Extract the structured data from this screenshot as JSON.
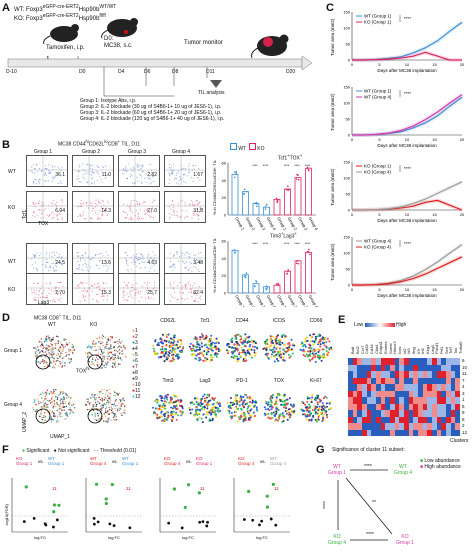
{
  "panels": {
    "A": "A",
    "B": "B",
    "C": "C",
    "D": "D",
    "E": "E",
    "F": "F",
    "G": "G"
  },
  "panelA": {
    "genotype_wt": "WT: Foxp3",
    "genotype_wt_sup": "eGFP-cre-ERT2",
    "genotype_wt_rest": "Hsp90b",
    "genotype_wt_sup2": "WT/WT",
    "genotype_ko": "KO: Foxp3",
    "genotype_ko_sup": "eGFP-cre-ERT2",
    "genotype_ko_rest": "Hsp90b",
    "genotype_ko_sup2": "fl/fl",
    "d0_label": "D0:",
    "d0_detail": "MC38, s.c.",
    "tamoxifen": "Tamoxifen, i.p.",
    "tumor_monitor": "Tumor monitor",
    "timeline": [
      "D-10",
      "D0",
      "D4",
      "D6",
      "D8",
      "D11",
      "D20"
    ],
    "til_analysis": "TIL analysis",
    "groups": [
      "Group 1:  Isotype Abs, i.p.",
      "Group 2:  IL-2 blockade (30 ug of S4B6-1+ 10 ug of JES6-1), i.p.",
      "Group 3:  IL-2 blockade (60 ug of S4B6-1+ 20 ug of JES6-1), i.p.",
      "Group 4:  IL-2 blockade (120 ug of S4B6-1+ 40 ug of JES6-1), i.p."
    ]
  },
  "panelB": {
    "title": "MC38 CD44",
    "title_rest": "CD62L",
    "title_rest2": "CD8",
    "title_end": " TIL, D11",
    "groups": [
      "Group 1",
      "Group 2",
      "Group 3",
      "Group 4"
    ],
    "rows": [
      "WT",
      "KO",
      "WT",
      "KO"
    ],
    "values_top": [
      [
        "36.1",
        "11.0",
        "2.82",
        "1.67"
      ],
      [
        "6.04",
        "14.3",
        "27.0",
        "31.8"
      ]
    ],
    "values_bottom": [
      [
        "24.5",
        "13.5",
        "4.63",
        "3.48"
      ],
      [
        "2.70",
        "15.3",
        "25.7",
        "32.4"
      ]
    ],
    "axis_tcf1": "Tcf1",
    "axis_tox": "TOX",
    "axis_tim3": "Tim3",
    "axis_lag3": "Lag3",
    "legend_wt": "WT",
    "legend_ko": "KO",
    "bar1_title": "Tcf1",
    "bar1_title_rest": "TOX",
    "bar2_title": "Tim3",
    "bar2_title_rest": "Lag3",
    "bar_ylabel": "% in CD44hiCD62LloCD8+ TIL",
    "bar_x": [
      "Group 1",
      "Group 2",
      "Group 3",
      "Group 4",
      "Group 1",
      "Group 2",
      "Group 3",
      "Group 4"
    ],
    "bar1_ticks": [
      "0",
      "20",
      "40",
      "60"
    ],
    "bar2_ticks": [
      "0",
      "20",
      "40",
      "60"
    ],
    "sig": "****"
  },
  "panelC": {
    "ylabel": "Tumor area (mm2)",
    "xlabel": "Days after MC38 implantation",
    "yticks": [
      "0",
      "50",
      "100",
      "150"
    ],
    "xticks": [
      "0",
      "5",
      "10",
      "15",
      "20"
    ],
    "legends": [
      [
        "WT (Group 1)",
        "KO (Group 1)"
      ],
      [
        "WT (Group 1)",
        "WT (Group 4)"
      ],
      [
        "KO (Group 1)",
        "KO (Group 4)"
      ],
      [
        "WT (Group 4)",
        "KO (Group 4)"
      ]
    ],
    "sig": "****"
  },
  "panelD": {
    "title": "MC38 CD8",
    "title_rest": " TIL, D11",
    "wt": "WT",
    "ko": "KO",
    "group1": "Group 1",
    "group4": "Group 4",
    "umap1": "UMAP_1",
    "umap2": "UMAP_2",
    "tox_label": "TOX",
    "markers": [
      "CD62L",
      "Tcf1",
      "CD44",
      "ICOS",
      "CD69",
      "Tim3",
      "Lag3",
      "PD-1",
      "TOX",
      "Ki-67"
    ],
    "cluster_ids": [
      "1",
      "2",
      "3",
      "4",
      "5",
      "6",
      "7",
      "8",
      "9",
      "10",
      "11",
      "12"
    ]
  },
  "panelE": {
    "low": "Low",
    "high": "High",
    "genes": [
      "Batf",
      "Bcl2",
      "Ccr7",
      "Cd28",
      "Cd44",
      "Ctla4",
      "Entpd1",
      "Eomes",
      "Gzmb",
      "Havcr2",
      "Icos",
      "Id2",
      "Id3",
      "Ifng",
      "Il7r",
      "Irf4",
      "Klrg1",
      "Lag3",
      "Pdcd1",
      "Prf1",
      "Sell",
      "Tcf7",
      "Tox",
      "Tnfrsf9"
    ],
    "rows": [
      "6",
      "10",
      "11",
      "7",
      "4",
      "3",
      "1",
      "5",
      "9",
      "8",
      "2",
      "12"
    ],
    "xlabel": "Clusters"
  },
  "panelF": {
    "legend_sig": "Significant",
    "legend_ns": "Not significant",
    "legend_thr": "Threshold (0.01)",
    "comparisons": [
      {
        "a": "KO",
        "a2": "Group 1",
        "b": "WT",
        "b2": "Group 1"
      },
      {
        "a": "WT",
        "a2": "Group 4",
        "b": "WT",
        "b2": "Group 1"
      },
      {
        "a": "KO",
        "a2": "Group 4",
        "b": "KO",
        "b2": "Group 1"
      },
      {
        "a": "KO",
        "a2": "Group 4",
        "b": "WT",
        "b2": "Group 4"
      }
    ],
    "vs": "vs.",
    "xlabel": "log FC",
    "ylabel": "-log10(FDR)",
    "cluster_label": "11"
  },
  "panelG": {
    "title": "Significance of cluster 11 subset:",
    "legend_low": "Low abundance",
    "legend_high": "High abundance",
    "wt1": "WT",
    "wt1b": "Group 1",
    "ko1": "KO",
    "ko1b": "Group 1",
    "wt4": "WT",
    "wt4b": "Group 4",
    "ko4": "KO",
    "ko4b": "Group 4",
    "sig4": "****",
    "sig2": "**"
  },
  "colors": {
    "wt": "#3a8fd9",
    "ko": "#e0245e",
    "wt4": "#9a9a9a",
    "ko4": "#e21d1d",
    "green": "#3cb043",
    "magenta": "#d63aa8",
    "heat_low": "#2a5ebd",
    "heat_high": "#e0202a"
  }
}
